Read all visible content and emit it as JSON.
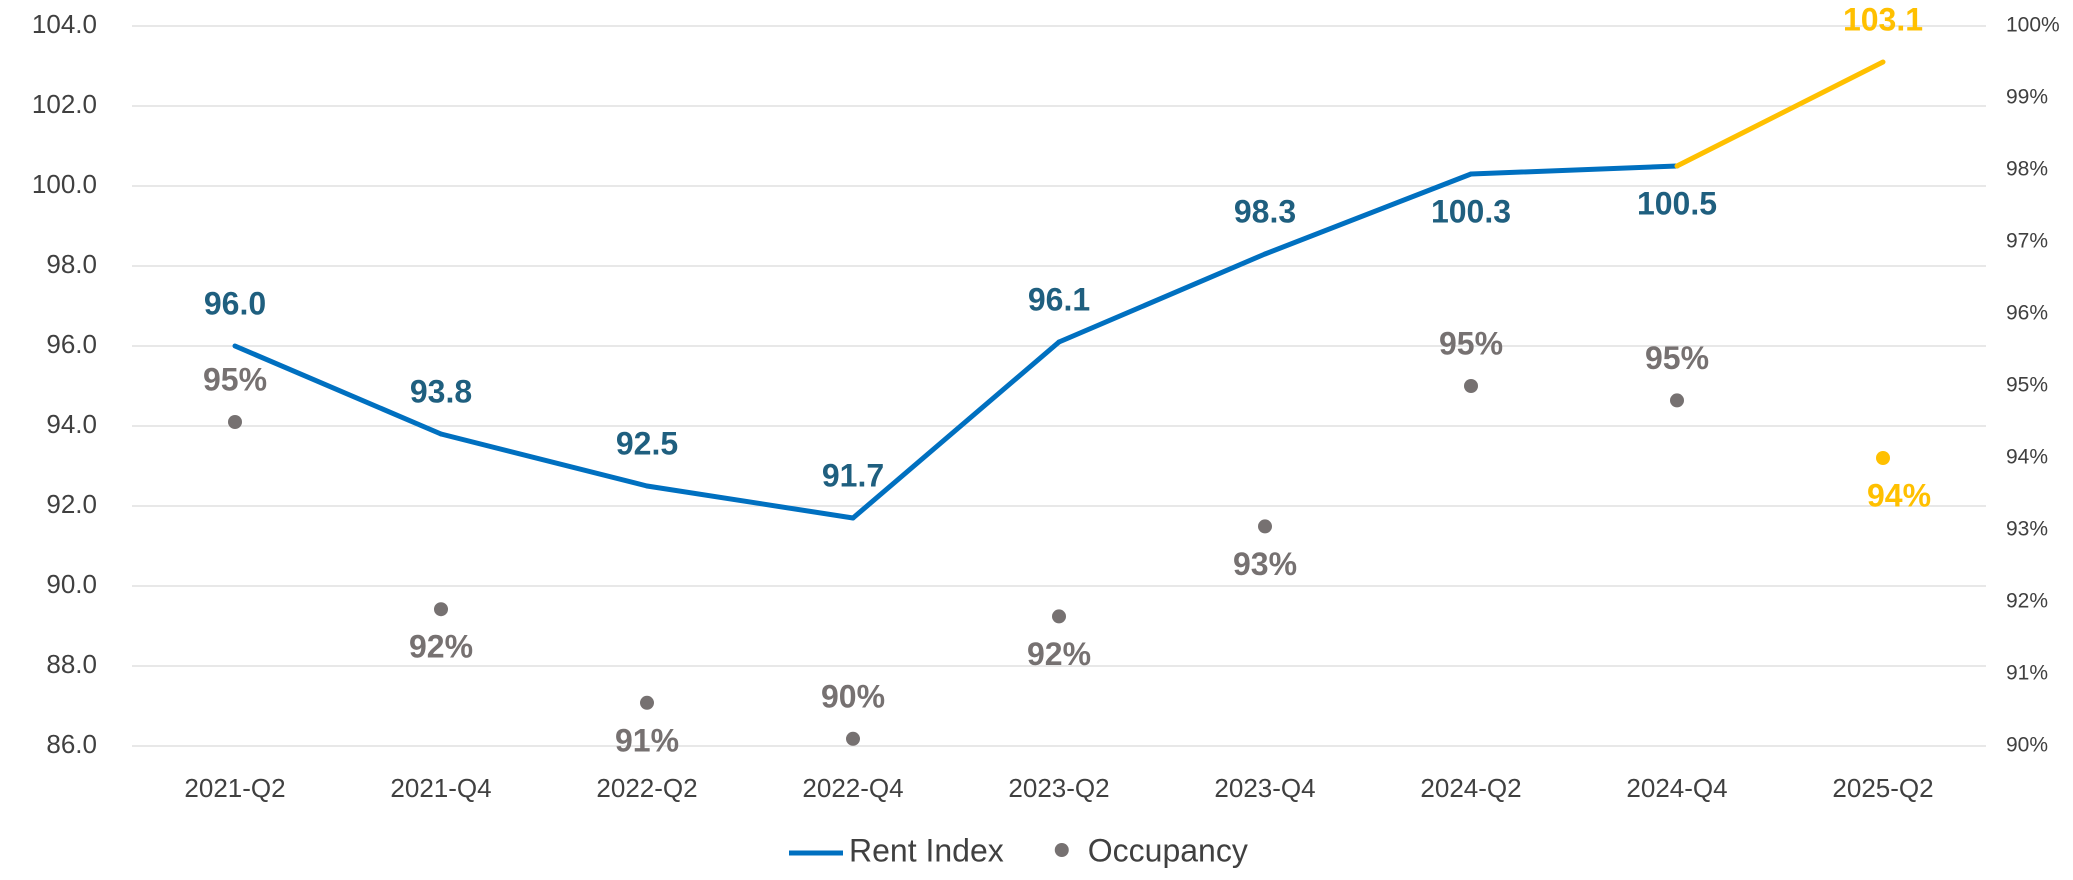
{
  "chart_data": {
    "type": "line",
    "categories": [
      "2021-Q2",
      "2021-Q4",
      "2022-Q2",
      "2022-Q4",
      "2023-Q2",
      "2023-Q4",
      "2024-Q2",
      "2024-Q4",
      "2025-Q2"
    ],
    "series": [
      {
        "name": "Rent Index",
        "color": "#0070c0",
        "label_color": "#1f5f7f",
        "colors": [
          "#0070c0",
          "#0070c0",
          "#0070c0",
          "#0070c0",
          "#0070c0",
          "#0070c0",
          "#0070c0",
          "#0070c0",
          "#ffc000"
        ],
        "values": [
          96.0,
          93.8,
          92.5,
          91.7,
          96.1,
          98.3,
          100.3,
          100.5,
          103.1
        ],
        "value_labels": [
          "96.0",
          "93.8",
          "92.5",
          "91.7",
          "96.1",
          "98.3",
          "100.3",
          "100.5",
          "103.1"
        ]
      },
      {
        "name": "Occupancy",
        "type": "scatter",
        "axis": "y2",
        "color": "#767171",
        "colors": [
          "#767171",
          "#767171",
          "#767171",
          "#767171",
          "#767171",
          "#767171",
          "#767171",
          "#767171",
          "#ffc000"
        ],
        "values": [
          94.5,
          91.9,
          90.6,
          90.1,
          91.8,
          93.05,
          95.0,
          94.8,
          94.0
        ],
        "value_labels": [
          "95%",
          "92%",
          "91%",
          "90%",
          "92%",
          "93%",
          "95%",
          "95%",
          "94%"
        ]
      }
    ],
    "ylim": [
      86,
      104
    ],
    "yticks": [
      {
        "value": 86,
        "label": "86.0"
      },
      {
        "value": 88,
        "label": "88.0"
      },
      {
        "value": 90,
        "label": "90.0"
      },
      {
        "value": 92,
        "label": "92.0"
      },
      {
        "value": 94,
        "label": "94.0"
      },
      {
        "value": 96,
        "label": "96.0"
      },
      {
        "value": 98,
        "label": "98.0"
      },
      {
        "value": 100,
        "label": "100.0"
      },
      {
        "value": 102,
        "label": "102.0"
      },
      {
        "value": 104,
        "label": "104.0"
      }
    ],
    "y2lim": [
      90,
      100
    ],
    "y2ticks": [
      {
        "value": 90,
        "label": "90%"
      },
      {
        "value": 91,
        "label": "91%"
      },
      {
        "value": 92,
        "label": "92%"
      },
      {
        "value": 93,
        "label": "93%"
      },
      {
        "value": 94,
        "label": "94%"
      },
      {
        "value": 95,
        "label": "95%"
      },
      {
        "value": 96,
        "label": "96%"
      },
      {
        "value": 97,
        "label": "97%"
      },
      {
        "value": 98,
        "label": "98%"
      },
      {
        "value": 99,
        "label": "99%"
      },
      {
        "value": 100,
        "label": "100%"
      }
    ],
    "grid": true,
    "legend": "bottom"
  }
}
